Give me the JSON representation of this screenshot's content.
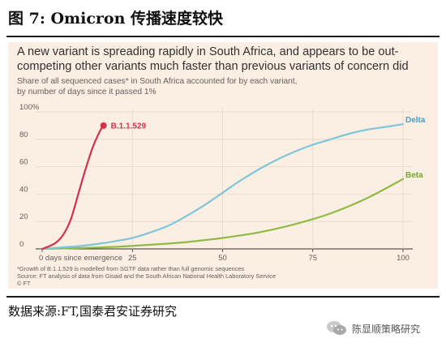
{
  "figure": {
    "title": "图 7:  Omicron 传播速度较快"
  },
  "chart_data": {
    "type": "line",
    "headline": "A new variant is spreading rapidly in South Africa, and appears to be out-competing other variants much faster than previous variants of concern did",
    "subtitle_line1": "Share of all sequenced cases* in South Africa accounted for by each variant,",
    "subtitle_line2": "by number of days since it passed 1%",
    "xlim": [
      0,
      100
    ],
    "ylim": [
      0,
      100
    ],
    "x_ticks": [
      25,
      50,
      75,
      100
    ],
    "x_first_tick_label": "0 days since emergence",
    "y_ticks": [
      0,
      20,
      40,
      60,
      80
    ],
    "y_top_label": "100%",
    "grid": true,
    "series": [
      {
        "name": "B.1.1.529",
        "color": "#d2314b",
        "label_color": "#d2314b",
        "marker_end": true,
        "x": [
          0,
          2,
          4,
          6,
          8,
          10,
          12,
          14,
          16,
          17
        ],
        "y": [
          0,
          2,
          5,
          11,
          22,
          40,
          58,
          74,
          86,
          90
        ]
      },
      {
        "name": "Delta",
        "color": "#7fc6db",
        "label_color": "#4b9ec2",
        "x": [
          0,
          5,
          10,
          15,
          20,
          25,
          30,
          35,
          40,
          45,
          50,
          55,
          60,
          65,
          70,
          75,
          80,
          85,
          90,
          95,
          100
        ],
        "y": [
          0,
          1,
          2,
          3.5,
          5.5,
          8,
          12,
          17,
          24,
          32,
          41,
          50,
          58,
          65,
          71,
          76,
          80,
          84,
          87,
          89,
          91
        ]
      },
      {
        "name": "Beta",
        "color": "#8fbb45",
        "label_color": "#74a72e",
        "x": [
          0,
          10,
          20,
          30,
          40,
          50,
          60,
          70,
          80,
          90,
          100
        ],
        "y": [
          0,
          0.6,
          1.5,
          3,
          5,
          8,
          12,
          18,
          26,
          37,
          51
        ]
      }
    ]
  },
  "footnotes": {
    "line1": "*Growth of B.1.1.529 is modelled from SGTF data rather than full genomic sequences",
    "line2": "Source: FT analysis of data from Gisaid and the South African National Health Laboratory Service",
    "line3": "© FT"
  },
  "source": {
    "text": "数据来源:FT,国泰君安证券研究"
  },
  "watermark": {
    "text": "陈显顺策略研究",
    "icon": "wechat-icon"
  }
}
